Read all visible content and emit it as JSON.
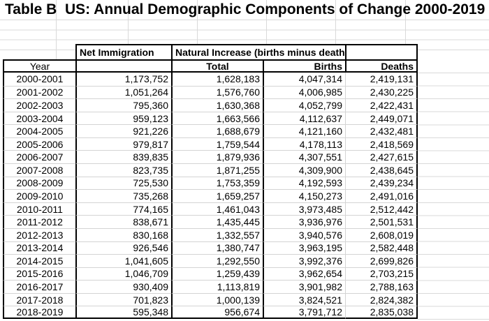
{
  "page": {
    "title": "Table B  US: Annual Demographic Components of Change 2000-2019"
  },
  "chart_data": {
    "type": "table",
    "title": "Table B  US: Annual Demographic Components of Change 2000-2019",
    "column_groups": [
      "Net Immigration",
      "Natural Increase (births minus deaths)"
    ],
    "header": {
      "year": "Year",
      "net_immigration": "Net Immigration",
      "natural_increase": "Natural Increase (births minus deaths)",
      "total": "Total",
      "births": "Births",
      "deaths": "Deaths"
    },
    "columns": [
      "Year",
      "Net Immigration",
      "Total",
      "Births",
      "Deaths"
    ],
    "rows": [
      [
        "2000-2001",
        "1,173,752",
        "1,628,183",
        "4,047,314",
        "2,419,131"
      ],
      [
        "2001-2002",
        "1,051,264",
        "1,576,760",
        "4,006,985",
        "2,430,225"
      ],
      [
        "2002-2003",
        "795,360",
        "1,630,368",
        "4,052,799",
        "2,422,431"
      ],
      [
        "2003-2004",
        "959,123",
        "1,663,566",
        "4,112,637",
        "2,449,071"
      ],
      [
        "2004-2005",
        "921,226",
        "1,688,679",
        "4,121,160",
        "2,432,481"
      ],
      [
        "2005-2006",
        "979,817",
        "1,759,544",
        "4,178,113",
        "2,418,569"
      ],
      [
        "2006-2007",
        "839,835",
        "1,879,936",
        "4,307,551",
        "2,427,615"
      ],
      [
        "2007-2008",
        "823,735",
        "1,871,255",
        "4,309,900",
        "2,438,645"
      ],
      [
        "2008-2009",
        "725,530",
        "1,753,359",
        "4,192,593",
        "2,439,234"
      ],
      [
        "2009-2010",
        "735,268",
        "1,659,257",
        "4,150,273",
        "2,491,016"
      ],
      [
        "2010-2011",
        "774,165",
        "1,461,043",
        "3,973,485",
        "2,512,442"
      ],
      [
        "2011-2012",
        "838,671",
        "1,435,445",
        "3,936,976",
        "2,501,531"
      ],
      [
        "2012-2013",
        "830,168",
        "1,332,557",
        "3,940,576",
        "2,608,019"
      ],
      [
        "2013-2014",
        "926,546",
        "1,380,747",
        "3,963,195",
        "2,582,448"
      ],
      [
        "2014-2015",
        "1,041,605",
        "1,292,550",
        "3,992,376",
        "2,699,826"
      ],
      [
        "2015-2016",
        "1,046,709",
        "1,259,439",
        "3,962,654",
        "2,703,215"
      ],
      [
        "2016-2017",
        "930,409",
        "1,113,819",
        "3,901,982",
        "2,788,163"
      ],
      [
        "2017-2018",
        "701,823",
        "1,000,139",
        "3,824,521",
        "2,824,382"
      ],
      [
        "2018-2019",
        "595,348",
        "956,674",
        "3,791,712",
        "2,835,038"
      ]
    ]
  },
  "colors": {
    "text": "#000000",
    "table_border": "#000000",
    "gridline": "#d9d9d9",
    "background": "#ffffff"
  }
}
